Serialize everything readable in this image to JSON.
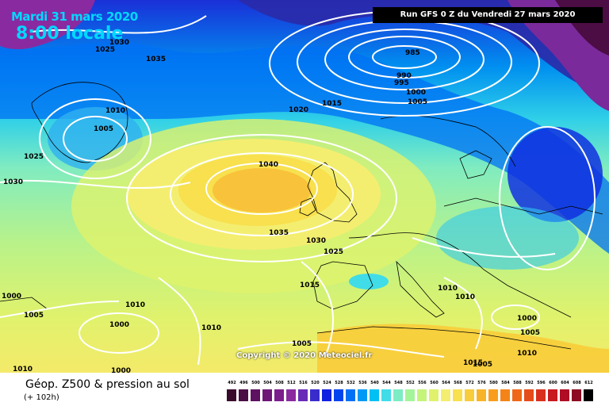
{
  "header": {
    "date": "Mardi 31 mars 2020",
    "time": "8:00 locale",
    "run": "Run GFS 0 Z du Vendredi 27 mars 2020"
  },
  "copyright": "Copyright © 2020 Meteociel.fr",
  "footer": {
    "title": "Géop. Z500 & pression au sol",
    "subtitle": "(+ 102h)"
  },
  "isobar_labels": [
    "1030",
    "1025",
    "1035",
    "985",
    "990",
    "995",
    "1000",
    "1005",
    "1010",
    "1005",
    "1020",
    "1015",
    "1025",
    "1030",
    "1040",
    "1035",
    "1030",
    "1025",
    "1015",
    "1010",
    "1010",
    "1000",
    "1005",
    "1010",
    "1010",
    "1005",
    "1000",
    "1005",
    "1000",
    "1000",
    "1010",
    "1005",
    "1010",
    "1015"
  ],
  "scale": {
    "labels": [
      "492",
      "496",
      "500",
      "504",
      "508",
      "512",
      "516",
      "520",
      "524",
      "528",
      "532",
      "536",
      "540",
      "544",
      "548",
      "552",
      "556",
      "560",
      "564",
      "568",
      "572",
      "576",
      "580",
      "584",
      "588",
      "592",
      "596",
      "600",
      "604",
      "608",
      "612"
    ],
    "colors": [
      "#3a0a2c",
      "#4c0c44",
      "#5e1160",
      "#6e1678",
      "#7c1d8c",
      "#8a2aa0",
      "#6a2ab8",
      "#3a2ccc",
      "#1020e0",
      "#0044ee",
      "#0070f4",
      "#009af6",
      "#00c0f4",
      "#40dce8",
      "#7cecc4",
      "#a4f49a",
      "#c4f47a",
      "#e0f26c",
      "#f4ee70",
      "#f8e04e",
      "#f8cc3a",
      "#f8b428",
      "#f89e1c",
      "#f48418",
      "#ee6818",
      "#e44c1a",
      "#d8301c",
      "#c81820",
      "#b00c24",
      "#8c0a22",
      "#000000"
    ]
  }
}
